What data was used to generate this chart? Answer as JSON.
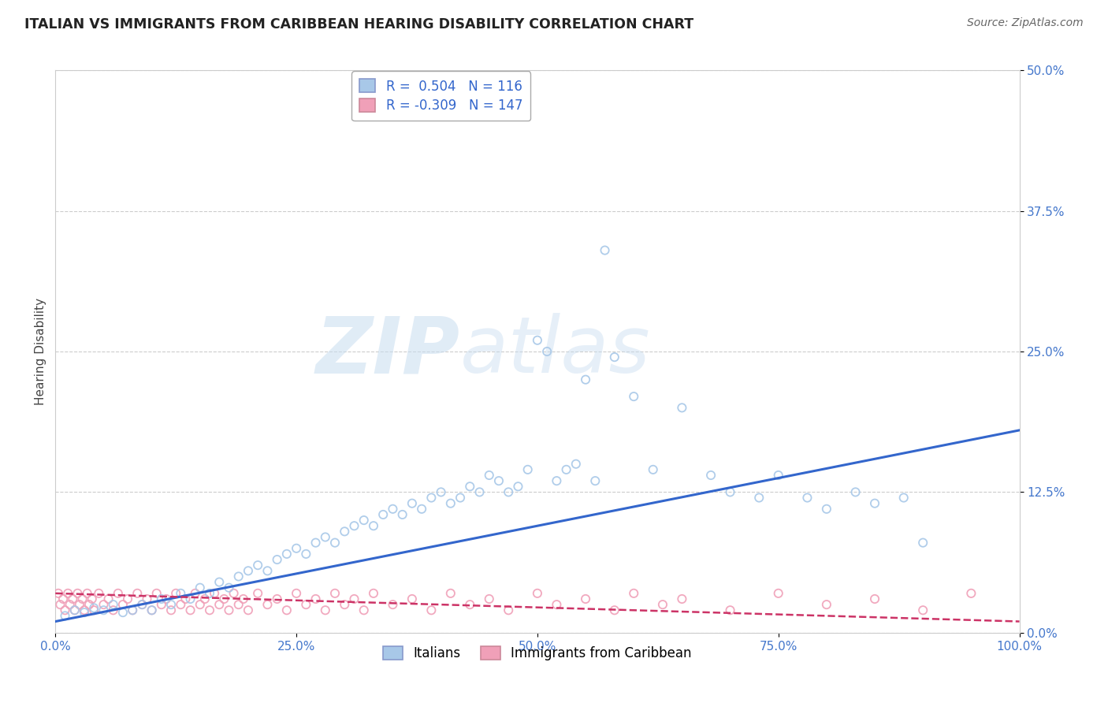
{
  "title": "ITALIAN VS IMMIGRANTS FROM CARIBBEAN HEARING DISABILITY CORRELATION CHART",
  "source": "Source: ZipAtlas.com",
  "ylabel": "Hearing Disability",
  "xlabel_tick_vals": [
    0,
    25,
    50,
    75,
    100
  ],
  "ylabel_tick_vals": [
    0,
    12.5,
    25,
    37.5,
    50
  ],
  "xlim": [
    0,
    100
  ],
  "ylim": [
    0,
    50
  ],
  "watermark_zip": "ZIP",
  "watermark_atlas": "atlas",
  "legend_r1_label": "R =  0.504   N = 116",
  "legend_r2_label": "R = -0.309   N = 147",
  "italian_color": "#a8c8e8",
  "caribbean_color": "#f0a0b8",
  "italian_line_color": "#3366cc",
  "caribbean_line_color": "#cc3366",
  "grid_color": "#cccccc",
  "bg_color": "#ffffff",
  "title_color": "#222222",
  "source_color": "#666666",
  "tick_color": "#4477cc",
  "legend_text_color": "#3366cc",
  "italian_line_x0": 0,
  "italian_line_x1": 100,
  "italian_line_y0": 1.0,
  "italian_line_y1": 18.0,
  "caribbean_line_x0": 0,
  "caribbean_line_x1": 100,
  "caribbean_line_y0": 3.5,
  "caribbean_line_y1": 1.0,
  "italian_scatter_x": [
    1,
    2,
    3,
    4,
    5,
    6,
    7,
    8,
    9,
    10,
    11,
    12,
    13,
    14,
    15,
    16,
    17,
    18,
    19,
    20,
    21,
    22,
    23,
    24,
    25,
    26,
    27,
    28,
    29,
    30,
    31,
    32,
    33,
    34,
    35,
    36,
    37,
    38,
    39,
    40,
    41,
    42,
    43,
    44,
    45,
    46,
    47,
    48,
    49,
    50,
    51,
    52,
    53,
    54,
    55,
    56,
    57,
    58,
    60,
    62,
    65,
    68,
    70,
    73,
    75,
    78,
    80,
    83,
    85,
    88,
    90
  ],
  "italian_scatter_y": [
    1.5,
    2.0,
    1.8,
    2.2,
    2.0,
    2.5,
    1.8,
    2.0,
    2.5,
    2.0,
    3.0,
    2.5,
    3.5,
    3.0,
    4.0,
    3.5,
    4.5,
    4.0,
    5.0,
    5.5,
    6.0,
    5.5,
    6.5,
    7.0,
    7.5,
    7.0,
    8.0,
    8.5,
    8.0,
    9.0,
    9.5,
    10.0,
    9.5,
    10.5,
    11.0,
    10.5,
    11.5,
    11.0,
    12.0,
    12.5,
    11.5,
    12.0,
    13.0,
    12.5,
    14.0,
    13.5,
    12.5,
    13.0,
    14.5,
    26.0,
    25.0,
    13.5,
    14.5,
    15.0,
    22.5,
    13.5,
    34.0,
    24.5,
    21.0,
    14.5,
    20.0,
    14.0,
    12.5,
    12.0,
    14.0,
    12.0,
    11.0,
    12.5,
    11.5,
    12.0,
    8.0
  ],
  "caribbean_scatter_x": [
    0.3,
    0.5,
    0.8,
    1.0,
    1.3,
    1.5,
    1.8,
    2.0,
    2.3,
    2.5,
    2.8,
    3.0,
    3.3,
    3.5,
    3.8,
    4.0,
    4.5,
    5.0,
    5.5,
    6.0,
    6.5,
    7.0,
    7.5,
    8.0,
    8.5,
    9.0,
    9.5,
    10.0,
    10.5,
    11.0,
    11.5,
    12.0,
    12.5,
    13.0,
    13.5,
    14.0,
    14.5,
    15.0,
    15.5,
    16.0,
    16.5,
    17.0,
    17.5,
    18.0,
    18.5,
    19.0,
    19.5,
    20.0,
    21.0,
    22.0,
    23.0,
    24.0,
    25.0,
    26.0,
    27.0,
    28.0,
    29.0,
    30.0,
    31.0,
    32.0,
    33.0,
    35.0,
    37.0,
    39.0,
    41.0,
    43.0,
    45.0,
    47.0,
    50.0,
    52.0,
    55.0,
    58.0,
    60.0,
    63.0,
    65.0,
    70.0,
    75.0,
    80.0,
    85.0,
    90.0,
    95.0
  ],
  "caribbean_scatter_y": [
    3.5,
    2.5,
    3.0,
    2.0,
    3.5,
    2.5,
    3.0,
    2.0,
    3.5,
    2.5,
    3.0,
    2.0,
    3.5,
    2.5,
    3.0,
    2.0,
    3.5,
    2.5,
    3.0,
    2.0,
    3.5,
    2.5,
    3.0,
    2.0,
    3.5,
    2.5,
    3.0,
    2.0,
    3.5,
    2.5,
    3.0,
    2.0,
    3.5,
    2.5,
    3.0,
    2.0,
    3.5,
    2.5,
    3.0,
    2.0,
    3.5,
    2.5,
    3.0,
    2.0,
    3.5,
    2.5,
    3.0,
    2.0,
    3.5,
    2.5,
    3.0,
    2.0,
    3.5,
    2.5,
    3.0,
    2.0,
    3.5,
    2.5,
    3.0,
    2.0,
    3.5,
    2.5,
    3.0,
    2.0,
    3.5,
    2.5,
    3.0,
    2.0,
    3.5,
    2.5,
    3.0,
    2.0,
    3.5,
    2.5,
    3.0,
    2.0,
    3.5,
    2.5,
    3.0,
    2.0,
    3.5
  ]
}
